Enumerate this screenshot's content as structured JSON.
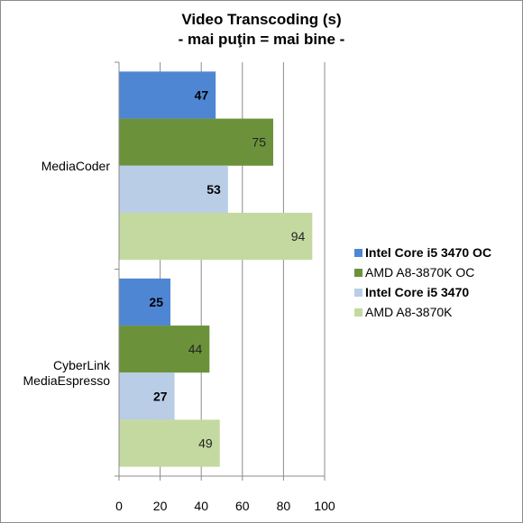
{
  "chart_data": {
    "type": "bar",
    "orientation": "horizontal",
    "title": "Video Transcoding (s)",
    "subtitle": "- mai puţin = mai bine -",
    "categories": [
      "MediaCoder",
      "CyberLink MediaEspresso"
    ],
    "series": [
      {
        "name": "Intel Core i5 3470 OC",
        "color": "#4f86d4",
        "bold": true,
        "values": [
          47,
          25
        ]
      },
      {
        "name": "AMD A8-3870K OC",
        "color": "#6b923a",
        "bold": false,
        "values": [
          75,
          44
        ]
      },
      {
        "name": "Intel Core i5 3470",
        "color": "#b9cde6",
        "bold": true,
        "values": [
          53,
          27
        ]
      },
      {
        "name": "AMD A8-3870K",
        "color": "#c4d9a0",
        "bold": false,
        "values": [
          94,
          49
        ]
      }
    ],
    "xlim": [
      0,
      100
    ],
    "xticks": [
      0,
      20,
      40,
      60,
      80,
      100
    ],
    "grid": true,
    "legend": "right"
  }
}
